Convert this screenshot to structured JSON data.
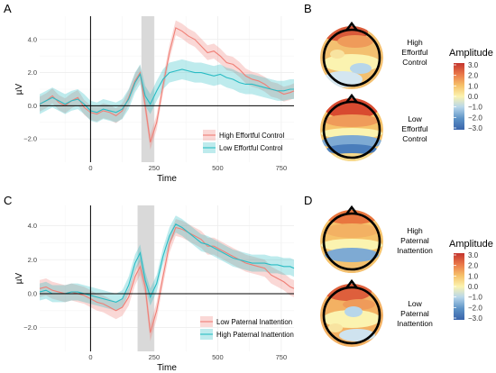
{
  "chart_data": [
    {
      "panel": "A",
      "type": "line",
      "xlabel": "Time",
      "ylabel": "µV",
      "xlim": [
        -200,
        800
      ],
      "ylim": [
        -3.4,
        5.4
      ],
      "xticks": [
        0,
        250,
        500,
        750
      ],
      "yticks": [
        -2.0,
        0.0,
        2.0,
        4.0
      ],
      "ytick_labels": [
        "−2.0",
        "0.0",
        "2.0",
        "4.0"
      ],
      "highlight_window": [
        200,
        250
      ],
      "legend_position": "bottom-right",
      "x": [
        -200,
        -175,
        -150,
        -125,
        -100,
        -75,
        -50,
        -25,
        0,
        25,
        50,
        75,
        100,
        125,
        150,
        175,
        195,
        215,
        235,
        260,
        285,
        310,
        335,
        360,
        385,
        410,
        435,
        460,
        485,
        510,
        535,
        560,
        585,
        610,
        635,
        660,
        685,
        710,
        735,
        760,
        785,
        800
      ],
      "series": [
        {
          "name": "High Effortful Control",
          "color": "#f07f76",
          "band": 0.45,
          "values": [
            0.1,
            0.3,
            0.6,
            0.2,
            0.0,
            0.3,
            0.5,
            -0.1,
            -0.4,
            -0.5,
            -0.3,
            -0.4,
            -0.6,
            -0.3,
            0.5,
            1.5,
            2.0,
            0.0,
            -2.2,
            -1.0,
            1.2,
            3.2,
            4.7,
            4.5,
            4.2,
            4.0,
            3.6,
            3.2,
            3.3,
            3.0,
            2.6,
            2.5,
            2.2,
            1.8,
            1.6,
            1.5,
            1.3,
            1.0,
            0.9,
            0.7,
            0.8,
            0.9
          ]
        },
        {
          "name": "Low Effortful Control",
          "color": "#29bcc4",
          "band": 0.6,
          "values": [
            0.1,
            0.3,
            0.5,
            0.3,
            0.1,
            0.3,
            0.4,
            0.1,
            -0.3,
            -0.4,
            -0.2,
            -0.3,
            -0.4,
            -0.2,
            0.4,
            1.4,
            1.9,
            0.6,
            0.1,
            0.9,
            1.6,
            2.0,
            2.1,
            2.2,
            2.1,
            2.0,
            2.0,
            1.9,
            1.8,
            1.9,
            1.7,
            1.6,
            1.4,
            1.3,
            1.3,
            1.2,
            1.1,
            1.0,
            0.9,
            0.9,
            1.0,
            1.0
          ]
        }
      ]
    },
    {
      "panel": "C",
      "type": "line",
      "xlabel": "Time",
      "ylabel": "µV",
      "xlim": [
        -200,
        800
      ],
      "ylim": [
        -3.4,
        5.2
      ],
      "xticks": [
        0,
        250,
        500,
        750
      ],
      "yticks": [
        -2.0,
        0.0,
        2.0,
        4.0
      ],
      "ytick_labels": [
        "−2.0",
        "0.0",
        "2.0",
        "4.0"
      ],
      "highlight_window": [
        185,
        250
      ],
      "legend_position": "bottom-right",
      "x": [
        -200,
        -175,
        -150,
        -125,
        -100,
        -75,
        -50,
        -25,
        0,
        25,
        50,
        75,
        100,
        125,
        150,
        175,
        195,
        215,
        235,
        260,
        285,
        310,
        335,
        360,
        385,
        410,
        435,
        460,
        485,
        510,
        535,
        560,
        585,
        610,
        635,
        660,
        685,
        710,
        735,
        760,
        785,
        800
      ],
      "series": [
        {
          "name": "Low Paternal Inattention",
          "color": "#f07f76",
          "band": 0.5,
          "values": [
            0.3,
            0.4,
            0.2,
            0.1,
            0.0,
            0.1,
            0.0,
            -0.1,
            -0.3,
            -0.5,
            -0.6,
            -0.8,
            -1.0,
            -0.8,
            -0.2,
            1.0,
            1.6,
            0.4,
            -2.3,
            -1.0,
            1.0,
            2.9,
            3.9,
            3.8,
            3.6,
            3.4,
            3.2,
            2.8,
            2.8,
            2.6,
            2.4,
            2.2,
            2.0,
            1.8,
            1.7,
            1.6,
            1.5,
            1.1,
            0.9,
            0.7,
            0.4,
            0.3
          ]
        },
        {
          "name": "High Paternal Inattention",
          "color": "#29bcc4",
          "band": 0.5,
          "values": [
            0.1,
            0.2,
            0.0,
            0.0,
            0.0,
            0.1,
            0.1,
            0.0,
            -0.1,
            -0.2,
            -0.3,
            -0.4,
            -0.5,
            -0.3,
            0.5,
            1.8,
            2.4,
            0.8,
            -0.2,
            0.6,
            2.2,
            3.4,
            4.1,
            3.9,
            3.6,
            3.3,
            3.0,
            2.9,
            2.7,
            2.5,
            2.3,
            2.1,
            2.0,
            1.9,
            1.8,
            1.8,
            1.8,
            1.7,
            1.7,
            1.6,
            1.6,
            1.5
          ]
        }
      ]
    }
  ],
  "panels": {
    "A": {
      "label": "A"
    },
    "B": {
      "label": "B",
      "scalp_labels": [
        [
          "High",
          "Effortful",
          "Control"
        ],
        [
          "Low",
          "Effortful",
          "Control"
        ]
      ],
      "legend_title": "Amplitude",
      "legend_ticks": [
        "3.0",
        "2.0",
        "1.0",
        "0.0",
        "−1.0",
        "−2.0",
        "−3.0"
      ]
    },
    "C": {
      "label": "C"
    },
    "D": {
      "label": "D",
      "scalp_labels": [
        [
          "High",
          "Paternal",
          "Inattention"
        ],
        [
          "Low",
          "Paternal",
          "Inattention"
        ]
      ],
      "legend_title": "Amplitude",
      "legend_ticks": [
        "3.0",
        "2.0",
        "1.0",
        "0.0",
        "−1.0",
        "−2.0",
        "−3.0"
      ]
    }
  },
  "colors": {
    "gradient": [
      "#c4342e",
      "#ea7a4a",
      "#f6c36b",
      "#fbf3b0",
      "#b7d6ea",
      "#5d93c6",
      "#3964ab"
    ],
    "highlight": "#d9d9d9"
  }
}
